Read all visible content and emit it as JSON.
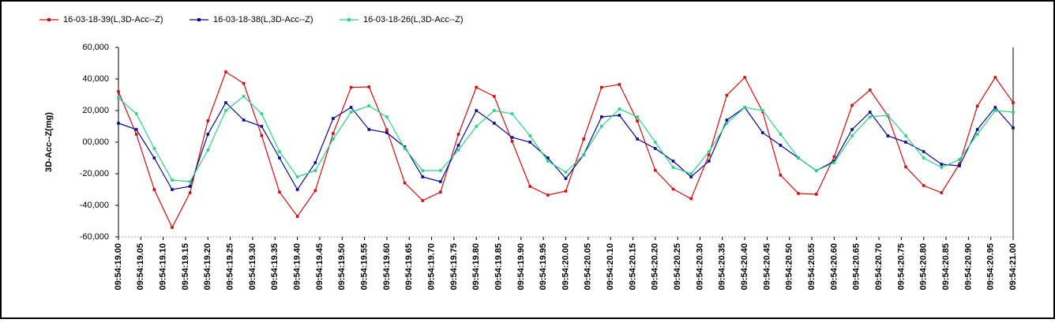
{
  "chart_data": {
    "type": "line",
    "y_label": "3D-Acc--Z(mg)",
    "ylim": [
      -60000,
      60000
    ],
    "yticks": [
      {
        "value": 60000,
        "label": "60,000"
      },
      {
        "value": 40000,
        "label": "40,000"
      },
      {
        "value": 20000,
        "label": "20,000"
      },
      {
        "value": 0,
        "label": "00,000"
      },
      {
        "value": -20000,
        "label": "-20,000"
      },
      {
        "value": -40000,
        "label": "-40,000"
      },
      {
        "value": -60000,
        "label": "-60,000"
      }
    ],
    "xlim": [
      19,
      21
    ],
    "xticks": [
      {
        "value": 19.0,
        "label": "09:54:19.00"
      },
      {
        "value": 19.05,
        "label": "09:54:19.05"
      },
      {
        "value": 19.1,
        "label": "09:54:19.10"
      },
      {
        "value": 19.15,
        "label": "09:54:19.15"
      },
      {
        "value": 19.2,
        "label": "09:54:19.20"
      },
      {
        "value": 19.25,
        "label": "09:54:19.25"
      },
      {
        "value": 19.3,
        "label": "09:54:19.30"
      },
      {
        "value": 19.35,
        "label": "09:54:19.35"
      },
      {
        "value": 19.4,
        "label": "09:54:19.40"
      },
      {
        "value": 19.45,
        "label": "09:54:19.45"
      },
      {
        "value": 19.5,
        "label": "09:54:19.50"
      },
      {
        "value": 19.55,
        "label": "09:54:19.55"
      },
      {
        "value": 19.6,
        "label": "09:54:19.60"
      },
      {
        "value": 19.65,
        "label": "09:54:19.65"
      },
      {
        "value": 19.7,
        "label": "09:54:19.70"
      },
      {
        "value": 19.75,
        "label": "09:54:19.75"
      },
      {
        "value": 19.8,
        "label": "09:54:19.80"
      },
      {
        "value": 19.85,
        "label": "09:54:19.85"
      },
      {
        "value": 19.9,
        "label": "09:54:19.90"
      },
      {
        "value": 19.95,
        "label": "09:54:19.95"
      },
      {
        "value": 20.0,
        "label": "09:54:20.00"
      },
      {
        "value": 20.05,
        "label": "09:54:20.05"
      },
      {
        "value": 20.1,
        "label": "09:54:20.10"
      },
      {
        "value": 20.15,
        "label": "09:54:20.15"
      },
      {
        "value": 20.2,
        "label": "09:54:20.20"
      },
      {
        "value": 20.25,
        "label": "09:54:20.25"
      },
      {
        "value": 20.3,
        "label": "09:54:20.30"
      },
      {
        "value": 20.35,
        "label": "09:54:20.35"
      },
      {
        "value": 20.4,
        "label": "09:54:20.40"
      },
      {
        "value": 20.45,
        "label": "09:54:20.45"
      },
      {
        "value": 20.5,
        "label": "09:54:20.50"
      },
      {
        "value": 20.55,
        "label": "09:54:20.55"
      },
      {
        "value": 20.6,
        "label": "09:54:20.60"
      },
      {
        "value": 20.65,
        "label": "09:54:20.65"
      },
      {
        "value": 20.7,
        "label": "09:54:20.70"
      },
      {
        "value": 20.75,
        "label": "09:54:20.75"
      },
      {
        "value": 20.8,
        "label": "09:54:20.80"
      },
      {
        "value": 20.85,
        "label": "09:54:20.85"
      },
      {
        "value": 20.9,
        "label": "09:54:20.90"
      },
      {
        "value": 20.95,
        "label": "09:54:20.95"
      },
      {
        "value": 21.0,
        "label": "09:54:21.00"
      }
    ],
    "x": [
      19.0,
      19.04,
      19.08,
      19.12,
      19.16,
      19.2,
      19.24,
      19.28,
      19.32,
      19.36,
      19.4,
      19.44,
      19.48,
      19.52,
      19.56,
      19.6,
      19.64,
      19.68,
      19.72,
      19.76,
      19.8,
      19.84,
      19.88,
      19.92,
      19.96,
      20.0,
      20.04,
      20.08,
      20.12,
      20.16,
      20.2,
      20.24,
      20.28,
      20.32,
      20.36,
      20.4,
      20.44,
      20.48,
      20.52,
      20.56,
      20.6,
      20.64,
      20.68,
      20.72,
      20.76,
      20.8,
      20.84,
      20.88,
      20.92,
      20.96,
      21.0
    ],
    "legend": "top-left",
    "series": [
      {
        "name": "16-03-18-39(L,3D-Acc--Z)",
        "color": "#cc1111",
        "values": [
          32000,
          5000,
          -30000,
          -54000,
          -32000,
          13500,
          44500,
          37200,
          4200,
          -31600,
          -47000,
          -30700,
          5500,
          34700,
          35000,
          7800,
          -25800,
          -37000,
          -31600,
          5000,
          34700,
          29000,
          500,
          -28000,
          -33500,
          -31000,
          2000,
          34700,
          36500,
          13400,
          -17800,
          -29700,
          -35800,
          -8100,
          29700,
          41000,
          19300,
          -20900,
          -32500,
          -33000,
          -9200,
          23300,
          33000,
          16700,
          -15700,
          -27500,
          -32000,
          -13800,
          22800,
          41000,
          25000
        ]
      },
      {
        "name": "16-03-18-38(L,3D-Acc--Z)",
        "color": "#0a0a8c",
        "values": [
          12000,
          8000,
          -10000,
          -30000,
          -28000,
          5000,
          25000,
          14000,
          10000,
          -10000,
          -30000,
          -13000,
          15000,
          22000,
          8000,
          6000,
          -3000,
          -22000,
          -25000,
          -2000,
          20000,
          12000,
          3000,
          0,
          -10000,
          -23000,
          -8000,
          16000,
          17000,
          2000,
          -4000,
          -12000,
          -22000,
          -12000,
          14000,
          22000,
          6000,
          -2000,
          -10000,
          -18000,
          -12000,
          8000,
          19000,
          4000,
          0,
          -6000,
          -14000,
          -15000,
          8000,
          22000,
          9000
        ]
      },
      {
        "name": "16-03-18-26(L,3D-Acc--Z)",
        "color": "#2fd08a",
        "values": [
          28000,
          18000,
          -4000,
          -24000,
          -25000,
          -5000,
          20000,
          29000,
          18000,
          -6000,
          -22000,
          -18000,
          2000,
          19000,
          23000,
          16000,
          -4000,
          -18000,
          -18000,
          -5000,
          10000,
          20000,
          18000,
          4000,
          -12000,
          -19000,
          -8000,
          10000,
          21000,
          16000,
          0,
          -16000,
          -20000,
          -6000,
          12000,
          22000,
          20000,
          5000,
          -10000,
          -18000,
          -13000,
          4000,
          16000,
          17000,
          4000,
          -10000,
          -16000,
          -11000,
          5000,
          20000,
          19000
        ]
      }
    ]
  }
}
